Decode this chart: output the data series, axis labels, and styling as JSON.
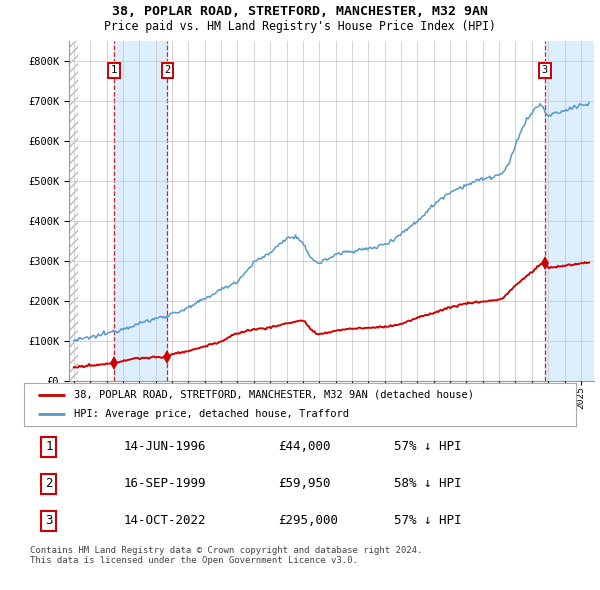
{
  "title1": "38, POPLAR ROAD, STRETFORD, MANCHESTER, M32 9AN",
  "title2": "Price paid vs. HM Land Registry's House Price Index (HPI)",
  "ylim": [
    0,
    850000
  ],
  "yticks": [
    0,
    100000,
    200000,
    300000,
    400000,
    500000,
    600000,
    700000,
    800000
  ],
  "ytick_labels": [
    "£0",
    "£100K",
    "£200K",
    "£300K",
    "£400K",
    "£500K",
    "£600K",
    "£700K",
    "£800K"
  ],
  "xlim_start": 1993.7,
  "xlim_end": 2025.8,
  "sale_dates": [
    1996.45,
    1999.71,
    2022.79
  ],
  "sale_prices": [
    44000,
    59950,
    295000
  ],
  "sale_labels": [
    "1",
    "2",
    "3"
  ],
  "legend_red": "38, POPLAR ROAD, STRETFORD, MANCHESTER, M32 9AN (detached house)",
  "legend_blue": "HPI: Average price, detached house, Trafford",
  "table_rows": [
    [
      "1",
      "14-JUN-1996",
      "£44,000",
      "57% ↓ HPI"
    ],
    [
      "2",
      "16-SEP-1999",
      "£59,950",
      "58% ↓ HPI"
    ],
    [
      "3",
      "14-OCT-2022",
      "£295,000",
      "57% ↓ HPI"
    ]
  ],
  "footnote": "Contains HM Land Registry data © Crown copyright and database right 2024.\nThis data is licensed under the Open Government Licence v3.0.",
  "red_color": "#cc0000",
  "blue_color": "#5599cc",
  "shade_color": "#ddeeff",
  "bg_color": "#ffffff",
  "grid_color": "#cccccc",
  "hatch_color": "#bbbbbb",
  "hpi_key_x": [
    1994,
    1995,
    1996,
    1997,
    1998,
    1999,
    2000,
    2001,
    2002,
    2003,
    2004,
    2005,
    2006,
    2007,
    2007.5,
    2008,
    2008.5,
    2009,
    2009.5,
    2010,
    2011,
    2012,
    2013,
    2014,
    2015,
    2016,
    2017,
    2018,
    2019,
    2020,
    2020.5,
    2021,
    2021.5,
    2022,
    2022.5,
    2023,
    2023.5,
    2024,
    2024.5,
    2025,
    2025.5
  ],
  "hpi_key_y": [
    100000,
    108000,
    118000,
    130000,
    143000,
    155000,
    167000,
    182000,
    205000,
    228000,
    250000,
    295000,
    320000,
    355000,
    360000,
    340000,
    310000,
    295000,
    305000,
    315000,
    325000,
    330000,
    342000,
    368000,
    400000,
    440000,
    472000,
    490000,
    505000,
    515000,
    535000,
    590000,
    640000,
    670000,
    690000,
    665000,
    670000,
    675000,
    685000,
    690000,
    692000
  ],
  "red_key_x": [
    1994,
    1995,
    1996,
    1996.45,
    1997,
    1998,
    1999,
    1999.71,
    2000,
    2001,
    2002,
    2003,
    2004,
    2005,
    2006,
    2007,
    2008,
    2008.5,
    2009,
    2009.5,
    2010,
    2011,
    2012,
    2013,
    2014,
    2015,
    2016,
    2017,
    2018,
    2019,
    2020,
    2021,
    2022,
    2022.79,
    2023,
    2024,
    2025,
    2025.5
  ],
  "red_key_y": [
    33000,
    37000,
    41000,
    44000,
    50000,
    56000,
    58000,
    59950,
    66000,
    74000,
    86000,
    98000,
    118000,
    128000,
    133000,
    143000,
    150000,
    128000,
    115000,
    120000,
    125000,
    130000,
    132000,
    135000,
    142000,
    157000,
    170000,
    183000,
    193000,
    198000,
    203000,
    238000,
    272000,
    295000,
    283000,
    288000,
    293000,
    296000
  ]
}
